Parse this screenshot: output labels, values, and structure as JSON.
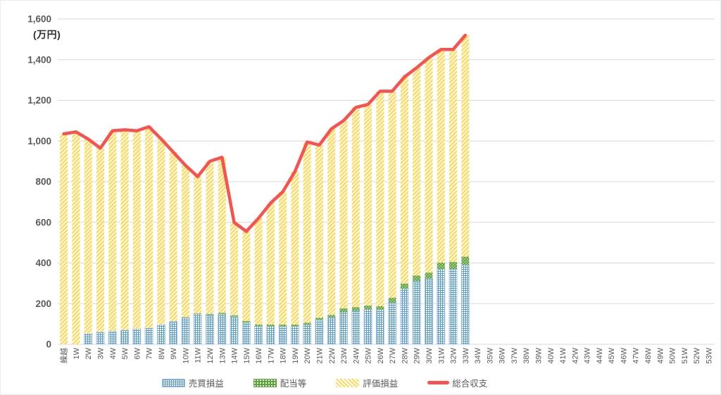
{
  "chart_data": {
    "type": "bar",
    "subtype": "stacked-bars-with-line-overlay",
    "title": "",
    "unit_label": "(万円)",
    "xlabel": "",
    "ylabel": "",
    "ylim": [
      0,
      1600
    ],
    "ytick_step": 200,
    "ytick_labels": [
      "0",
      "200",
      "400",
      "600",
      "800",
      "1,000",
      "1,200",
      "1,400",
      "1,600"
    ],
    "grid": true,
    "legend_position": "bottom",
    "categories": [
      "繰越",
      "1W",
      "2W",
      "3W",
      "4W",
      "5W",
      "6W",
      "7W",
      "8W",
      "9W",
      "10W",
      "11W",
      "12W",
      "13W",
      "14W",
      "15W",
      "16W",
      "17W",
      "18W",
      "19W",
      "20W",
      "21W",
      "22W",
      "23W",
      "24W",
      "25W",
      "26W",
      "27W",
      "28W",
      "29W",
      "30W",
      "31W",
      "32W",
      "33W",
      "34W",
      "35W",
      "36W",
      "37W",
      "38W",
      "39W",
      "40W",
      "41W",
      "42W",
      "43W",
      "44W",
      "45W",
      "46W",
      "47W",
      "48W",
      "49W",
      "50W",
      "51W",
      "52W",
      "53W"
    ],
    "series": [
      {
        "name": "売買損益",
        "type": "bar",
        "pattern": "blue-grid",
        "color": "#5B9BD5",
        "values": [
          0,
          0,
          52,
          60,
          65,
          70,
          76,
          80,
          97,
          113,
          131,
          148,
          145,
          148,
          136,
          107,
          89,
          88,
          88,
          88,
          96,
          120,
          133,
          158,
          165,
          172,
          170,
          205,
          273,
          311,
          323,
          368,
          370,
          391,
          null,
          null,
          null,
          null,
          null,
          null,
          null,
          null,
          null,
          null,
          null,
          null,
          null,
          null,
          null,
          null,
          null,
          null,
          null,
          null
        ]
      },
      {
        "name": "配当等",
        "type": "bar",
        "pattern": "green-dots",
        "color": "#70AD47",
        "values": [
          0,
          0,
          0,
          0,
          0,
          0,
          0,
          0,
          0,
          0,
          2,
          4,
          5,
          7,
          7,
          8,
          8,
          9,
          9,
          9,
          10,
          11,
          12,
          19,
          18,
          19,
          17,
          24,
          26,
          28,
          30,
          34,
          35,
          40,
          null,
          null,
          null,
          null,
          null,
          null,
          null,
          null,
          null,
          null,
          null,
          null,
          null,
          null,
          null,
          null,
          null,
          null,
          null,
          null
        ]
      },
      {
        "name": "評価損益",
        "type": "bar",
        "pattern": "yellow-hatch",
        "color": "#FFD95C",
        "values": [
          1035,
          1045,
          958,
          905,
          985,
          985,
          974,
          990,
          913,
          832,
          747,
          673,
          750,
          765,
          457,
          440,
          523,
          598,
          653,
          753,
          889,
          849,
          915,
          923,
          982,
          989,
          1058,
          1016,
          1016,
          1021,
          1057,
          1048,
          1045,
          1089,
          null,
          null,
          null,
          null,
          null,
          null,
          null,
          null,
          null,
          null,
          null,
          null,
          null,
          null,
          null,
          null,
          null,
          null,
          null,
          null
        ]
      },
      {
        "name": "総合収支",
        "type": "line",
        "pattern": "solid-red",
        "color": "#F8524F",
        "values": [
          1035,
          1045,
          1010,
          965,
          1050,
          1055,
          1050,
          1070,
          1010,
          945,
          880,
          825,
          900,
          920,
          600,
          555,
          620,
          695,
          750,
          850,
          995,
          980,
          1060,
          1100,
          1165,
          1180,
          1245,
          1245,
          1315,
          1360,
          1410,
          1450,
          1450,
          1520,
          null,
          null,
          null,
          null,
          null,
          null,
          null,
          null,
          null,
          null,
          null,
          null,
          null,
          null,
          null,
          null,
          null,
          null,
          null,
          null
        ]
      }
    ]
  },
  "colors": {
    "grid_line": "#D9D9D9",
    "axis_text": "#595959",
    "x_label_text": "#595959",
    "blue_border": "#9DC3E6",
    "line_red": "#F8524F",
    "background": "#FFFFFF"
  }
}
